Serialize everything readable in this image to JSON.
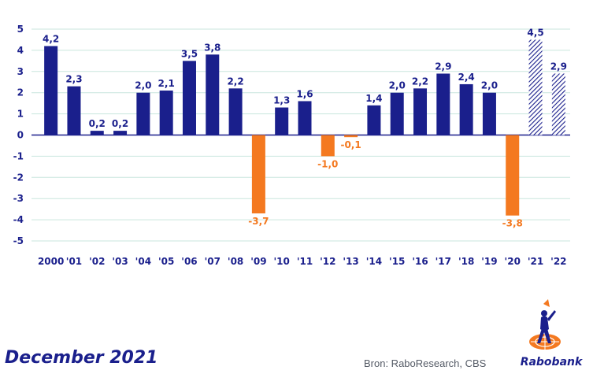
{
  "chart_data": {
    "type": "bar",
    "categories": [
      "2000",
      "'01",
      "'02",
      "'03",
      "'04",
      "'05",
      "'06",
      "'07",
      "'08",
      "'09",
      "'10",
      "'11",
      "'12",
      "'13",
      "'14",
      "'15",
      "'16",
      "'17",
      "'18",
      "'19",
      "'20",
      "'21",
      "'22"
    ],
    "values": [
      4.2,
      2.3,
      0.2,
      0.2,
      2.0,
      2.1,
      3.5,
      3.8,
      2.2,
      -3.7,
      1.3,
      1.6,
      -1.0,
      -0.1,
      1.4,
      2.0,
      2.2,
      2.9,
      2.4,
      2.0,
      -3.8,
      4.5,
      2.9
    ],
    "value_labels": [
      "4,2",
      "2,3",
      "0,2",
      "0,2",
      "2,0",
      "2,1",
      "3,5",
      "3,8",
      "2,2",
      "-3,7",
      "1,3",
      "1,6",
      "-1,0",
      "-0,1",
      "1,4",
      "2,0",
      "2,2",
      "2,9",
      "2,4",
      "2,0",
      "-3,8",
      "4,5",
      "2,9"
    ],
    "forecast": [
      false,
      false,
      false,
      false,
      false,
      false,
      false,
      false,
      false,
      false,
      false,
      false,
      false,
      false,
      false,
      false,
      false,
      false,
      false,
      false,
      false,
      true,
      true
    ],
    "ylim": [
      -5,
      5
    ],
    "yticks": [
      "5",
      "4",
      "3",
      "2",
      "1",
      "0",
      "-1",
      "-2",
      "-3",
      "-4",
      "-5"
    ],
    "grid": true,
    "title": "",
    "xlabel": "",
    "ylabel": "",
    "colors": {
      "positive": "#1a1f8c",
      "negative": "#f47920",
      "grid": "#c9e6de",
      "axis": "#1a1f8c"
    }
  },
  "footer": {
    "date": "December 2021",
    "source": "Bron: RaboResearch, CBS"
  },
  "logo": {
    "name": "Rabobank",
    "icon": "rabobank-logo-icon"
  }
}
